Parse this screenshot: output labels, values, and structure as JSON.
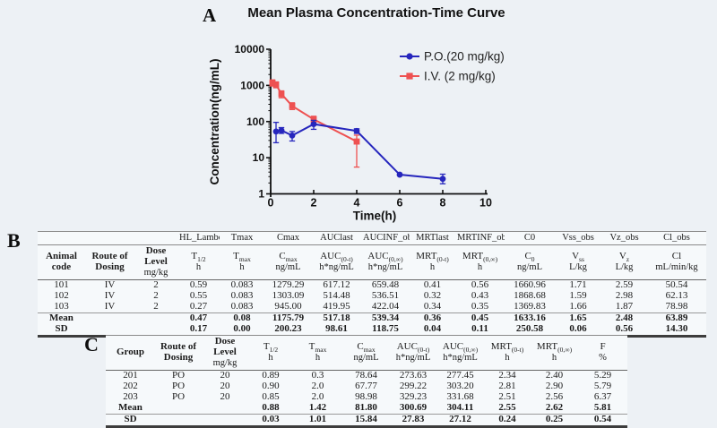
{
  "panels": {
    "a_label": "A",
    "b_label": "B",
    "c_label": "C"
  },
  "chart_data": {
    "type": "line",
    "title": "Mean Plasma Concentration-Time Curve",
    "xlabel": "Time(h)",
    "ylabel": "Concentration(ng/mL)",
    "xlim": [
      0,
      10
    ],
    "x_ticks": [
      0,
      2,
      4,
      6,
      8,
      10
    ],
    "y_scale": "log",
    "ylim": [
      1,
      10000
    ],
    "y_ticks": [
      1,
      10,
      100,
      1000,
      10000
    ],
    "grid": false,
    "legend_position": "top-right",
    "series": [
      {
        "name": "P.O.(20 mg/kg)",
        "marker": "circle",
        "color": "#2626bd",
        "x": [
          0.25,
          0.5,
          1,
          2,
          4,
          6,
          8
        ],
        "y": [
          53,
          57,
          41,
          85,
          55,
          3.4,
          2.6
        ],
        "err_lo": [
          26,
          47,
          29,
          61,
          47,
          3.4,
          1.9
        ],
        "err_hi": [
          95,
          68,
          53,
          108,
          63,
          3.4,
          3.5
        ]
      },
      {
        "name": "I.V. (2 mg/kg)",
        "marker": "square",
        "color": "#ee5151",
        "x": [
          0.083,
          0.25,
          0.5,
          1,
          2,
          4
        ],
        "y": [
          1176,
          1050,
          580,
          270,
          115,
          28
        ],
        "err_lo": [
          960,
          860,
          455,
          215,
          95,
          5.5
        ],
        "err_hi": [
          1420,
          1250,
          705,
          330,
          140,
          42
        ]
      }
    ]
  },
  "table_b": {
    "software_header": [
      "",
      "",
      "",
      "HL_Lambda_",
      "Tmax",
      "Cmax",
      "AUClast",
      "AUCINF_obs",
      "MRTlast",
      "MRTINF_obs",
      "C0",
      "Vss_obs",
      "Vz_obs",
      "Cl_obs"
    ],
    "columns": [
      {
        "name": "Animal code",
        "bold": true,
        "unit": ""
      },
      {
        "name": "Route of Dosing",
        "bold": true,
        "unit": ""
      },
      {
        "name": "Dose Level",
        "bold": true,
        "unit": "mg/kg"
      },
      {
        "name": "T",
        "sub": "1/2",
        "unit": "h"
      },
      {
        "name": "T",
        "sub": "max",
        "unit": "h"
      },
      {
        "name": "C",
        "sub": "max",
        "unit": "ng/mL"
      },
      {
        "name": "AUC",
        "sub": "(0-t)",
        "unit": "h*ng/mL"
      },
      {
        "name": "AUC",
        "sub": "(0,∞)",
        "unit": "h*ng/mL"
      },
      {
        "name": "MRT",
        "sub": "(0-t)",
        "unit": "h"
      },
      {
        "name": "MRT",
        "sub": "(0,∞)",
        "unit": "h"
      },
      {
        "name": "C",
        "sub": "0",
        "unit": "ng/mL"
      },
      {
        "name": "V",
        "sub": "ss",
        "unit": "L/kg"
      },
      {
        "name": "V",
        "sub": "z",
        "unit": "L/kg"
      },
      {
        "name": "Cl",
        "unit": "mL/min/kg"
      }
    ],
    "rows": [
      [
        "101",
        "IV",
        "2",
        "0.59",
        "0.083",
        "1279.29",
        "617.12",
        "659.48",
        "0.41",
        "0.56",
        "1660.96",
        "1.71",
        "2.59",
        "50.54"
      ],
      [
        "102",
        "IV",
        "2",
        "0.55",
        "0.083",
        "1303.09",
        "514.48",
        "536.51",
        "0.32",
        "0.43",
        "1868.68",
        "1.59",
        "2.98",
        "62.13"
      ],
      [
        "103",
        "IV",
        "2",
        "0.27",
        "0.083",
        "945.00",
        "419.95",
        "422.04",
        "0.34",
        "0.35",
        "1369.83",
        "1.66",
        "1.87",
        "78.98"
      ],
      [
        "Mean",
        "",
        "",
        "0.47",
        "0.08",
        "1175.79",
        "517.18",
        "539.34",
        "0.36",
        "0.45",
        "1633.16",
        "1.65",
        "2.48",
        "63.89"
      ],
      [
        "SD",
        "",
        "",
        "0.17",
        "0.00",
        "200.23",
        "98.61",
        "118.75",
        "0.04",
        "0.11",
        "250.58",
        "0.06",
        "0.56",
        "14.30"
      ]
    ],
    "rule_above": "Mean"
  },
  "table_c": {
    "columns": [
      {
        "name": "Group",
        "bold": true,
        "unit": ""
      },
      {
        "name": "Route of Dosing",
        "bold": true,
        "unit": ""
      },
      {
        "name": "Dose Level",
        "bold": true,
        "unit": "mg/kg"
      },
      {
        "name": "T",
        "sub": "1/2",
        "unit": "h"
      },
      {
        "name": "T",
        "sub": "max",
        "unit": "h"
      },
      {
        "name": "C",
        "sub": "max",
        "unit": "ng/mL"
      },
      {
        "name": "AUC",
        "sub": "(0-t)",
        "unit": "h*ng/mL"
      },
      {
        "name": "AUC",
        "sub": "(0,∞)",
        "unit": "h*ng/mL"
      },
      {
        "name": "MRT",
        "sub": "(0-t)",
        "unit": "h"
      },
      {
        "name": "MRT",
        "sub": "(0,∞)",
        "unit": "h"
      },
      {
        "name": "F",
        "unit": "%"
      }
    ],
    "rows": [
      [
        "201",
        "PO",
        "20",
        "0.89",
        "0.3",
        "78.64",
        "273.63",
        "277.45",
        "2.34",
        "2.40",
        "5.29"
      ],
      [
        "202",
        "PO",
        "20",
        "0.90",
        "2.0",
        "67.77",
        "299.22",
        "303.20",
        "2.81",
        "2.90",
        "5.79"
      ],
      [
        "203",
        "PO",
        "20",
        "0.85",
        "2.0",
        "98.98",
        "329.23",
        "331.68",
        "2.51",
        "2.56",
        "6.37"
      ],
      [
        "Mean",
        "",
        "",
        "0.88",
        "1.42",
        "81.80",
        "300.69",
        "304.11",
        "2.55",
        "2.62",
        "5.81"
      ],
      [
        "SD",
        "",
        "",
        "0.03",
        "1.01",
        "15.84",
        "27.83",
        "27.12",
        "0.24",
        "0.25",
        "0.54"
      ]
    ],
    "rule_above": "SD"
  }
}
